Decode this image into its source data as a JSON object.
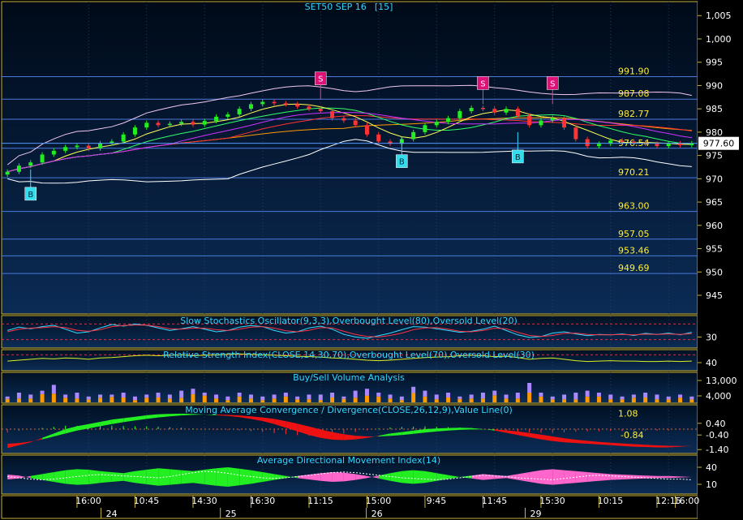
{
  "chart_data": {
    "type": "candlestick",
    "title": "SET50 SEP 16",
    "interval": "[15]",
    "current_price": "977.60",
    "y_axis": {
      "ticks": [
        "1,005",
        "1,000",
        "995",
        "990",
        "985",
        "980",
        "975",
        "970",
        "965",
        "960",
        "955",
        "950",
        "945"
      ],
      "range": [
        941,
        1008
      ]
    },
    "levels": [
      {
        "value": 991.9,
        "label": "991.90"
      },
      {
        "value": 987.08,
        "label": "987.08"
      },
      {
        "value": 982.77,
        "label": "982.77"
      },
      {
        "value": 976.54,
        "label": "976.54"
      },
      {
        "value": 970.21,
        "label": "970.21"
      },
      {
        "value": 963.0,
        "label": "963.00"
      },
      {
        "value": 957.05,
        "label": "957.05"
      },
      {
        "value": 953.46,
        "label": "953.46"
      },
      {
        "value": 949.69,
        "label": "949.69"
      }
    ],
    "signals": [
      {
        "type": "B",
        "index": 2,
        "price": 972.0
      },
      {
        "type": "S",
        "index": 27,
        "price": 987.0
      },
      {
        "type": "B",
        "index": 34,
        "price": 979.0
      },
      {
        "type": "S",
        "index": 41,
        "price": 986.0
      },
      {
        "type": "B",
        "index": 44,
        "price": 980.0
      },
      {
        "type": "S",
        "index": 47,
        "price": 986.0
      }
    ],
    "candles_close": [
      971.5,
      972.8,
      973.5,
      975.2,
      976.0,
      976.8,
      977.1,
      976.5,
      977.6,
      978.0,
      979.5,
      981.0,
      982.0,
      981.5,
      981.8,
      982.2,
      981.6,
      982.4,
      983.3,
      983.8,
      985.0,
      986.0,
      986.5,
      986.2,
      986.0,
      985.5,
      985.0,
      984.5,
      983.0,
      982.5,
      981.5,
      979.5,
      978.0,
      977.5,
      978.5,
      980.0,
      981.5,
      982.2,
      983.0,
      984.5,
      985.2,
      985.0,
      984.2,
      985.0,
      983.5,
      981.5,
      982.5,
      983.0,
      981.0,
      978.5,
      977.0,
      977.5,
      978.2,
      978.0,
      977.8,
      977.5,
      977.0,
      977.6,
      977.2,
      977.6
    ],
    "x_axis": {
      "time_labels": [
        "16:00",
        "10:45",
        "14:30",
        "16:30",
        "11:15",
        "15:00",
        "9:45",
        "11:45",
        "15:30",
        "10:15",
        "12:15",
        "16:00"
      ],
      "date_labels": [
        "24",
        "25",
        "26",
        "29"
      ]
    },
    "indicators": [
      {
        "name": "Slow Stochastics Oscillator(9,3,3),Overbought Level(80),Oversold Level(20)",
        "ticks": [
          "30"
        ],
        "k": [
          55,
          68,
          62,
          70,
          75,
          60,
          45,
          50,
          65,
          78,
          72,
          80,
          75,
          65,
          55,
          62,
          70,
          60,
          50,
          55,
          68,
          74,
          70,
          55,
          45,
          50,
          65,
          72,
          60,
          40,
          30,
          25,
          35,
          45,
          58,
          70,
          68,
          62,
          55,
          48,
          52,
          60,
          72,
          55,
          38,
          28,
          32,
          45,
          50,
          42,
          35,
          40,
          38,
          42,
          36,
          44,
          40,
          45,
          38,
          48
        ],
        "d": [
          50,
          60,
          64,
          66,
          70,
          66,
          56,
          52,
          58,
          70,
          74,
          76,
          76,
          70,
          62,
          60,
          64,
          64,
          58,
          55,
          60,
          68,
          70,
          64,
          54,
          50,
          56,
          66,
          65,
          52,
          40,
          32,
          30,
          36,
          45,
          58,
          65,
          66,
          60,
          52,
          50,
          55,
          64,
          62,
          48,
          36,
          32,
          36,
          44,
          45,
          40,
          38,
          38,
          40,
          38,
          41,
          40,
          42,
          40,
          43
        ]
      },
      {
        "name": "Relative Strength Index(CLOSE,14,30,70),Overbought Level(70),Oversold Level(30)",
        "ticks": [
          "40"
        ],
        "rsi": [
          48,
          50,
          52,
          54,
          53,
          55,
          54,
          52,
          55,
          56,
          58,
          60,
          61,
          60,
          61,
          62,
          60,
          61,
          62,
          63,
          64,
          63,
          62,
          61,
          60,
          59,
          58,
          57,
          55,
          54,
          52,
          50,
          49,
          50,
          52,
          54,
          56,
          57,
          58,
          60,
          61,
          60,
          58,
          59,
          56,
          52,
          54,
          55,
          52,
          49,
          47,
          48,
          49,
          48,
          48,
          47,
          47,
          48,
          47,
          48
        ]
      },
      {
        "name": "Buy/Sell Volume Analysis",
        "ticks": [
          "13,000",
          "4,000"
        ],
        "volume": [
          3,
          5,
          4,
          6,
          9,
          4,
          5,
          3,
          4,
          4,
          5,
          3,
          4,
          5,
          4,
          6,
          7,
          5,
          4,
          3,
          5,
          4,
          3,
          4,
          5,
          3,
          4,
          4,
          5,
          3,
          6,
          7,
          5,
          4,
          3,
          8,
          6,
          4,
          5,
          3,
          4,
          5,
          6,
          4,
          5,
          10,
          5,
          3,
          4,
          5,
          6,
          5,
          4,
          3,
          4,
          5,
          4,
          3,
          4,
          3
        ],
        "up_ratio": [
          0.6,
          0.4,
          0.5,
          0.7,
          0.5,
          0.6,
          0.4,
          0.5,
          0.6,
          0.7,
          0.5,
          0.4,
          0.6,
          0.5,
          0.5,
          0.4,
          0.6,
          0.7,
          0.5,
          0.4,
          0.6,
          0.5,
          0.4,
          0.5,
          0.6,
          0.5,
          0.4,
          0.3,
          0.5,
          0.6,
          0.4,
          0.5,
          0.6,
          0.5,
          0.4,
          0.6,
          0.5,
          0.4,
          0.5,
          0.6,
          0.5,
          0.4,
          0.6,
          0.5,
          0.4,
          0.5,
          0.6,
          0.5,
          0.4,
          0.3,
          0.5,
          0.6,
          0.4,
          0.5,
          0.6,
          0.5,
          0.4,
          0.5,
          0.6,
          0.5
        ]
      },
      {
        "name": "Moving Average Convergence / Divergence(CLOSE,26,12,9),Value Line(0)",
        "ticks": [
          "1.08",
          "0.40",
          "-0.40",
          "-1.40"
        ],
        "value_label": "-0.84",
        "macd": [
          -1.3,
          -1.1,
          -0.9,
          -0.6,
          -0.3,
          0.0,
          0.2,
          0.35,
          0.5,
          0.65,
          0.75,
          0.85,
          0.95,
          1.02,
          1.05,
          1.06,
          1.04,
          1.0,
          0.95,
          0.9,
          0.82,
          0.7,
          0.55,
          0.35,
          0.1,
          -0.15,
          -0.4,
          -0.6,
          -0.72,
          -0.75,
          -0.7,
          -0.6,
          -0.45,
          -0.3,
          -0.2,
          -0.1,
          0.0,
          0.05,
          0.08,
          0.1,
          0.08,
          0.0,
          -0.1,
          -0.25,
          -0.4,
          -0.55,
          -0.7,
          -0.82,
          -0.9,
          -0.95,
          -1.0,
          -1.05,
          -1.1,
          -1.15,
          -1.2,
          -1.22,
          -1.25,
          -1.25,
          -1.2,
          -1.15
        ],
        "signal": [
          -1.0,
          -0.95,
          -0.85,
          -0.7,
          -0.5,
          -0.3,
          -0.1,
          0.05,
          0.2,
          0.35,
          0.48,
          0.6,
          0.7,
          0.8,
          0.88,
          0.94,
          0.98,
          1.0,
          1.0,
          0.98,
          0.94,
          0.88,
          0.8,
          0.7,
          0.55,
          0.38,
          0.18,
          -0.02,
          -0.2,
          -0.35,
          -0.45,
          -0.5,
          -0.5,
          -0.46,
          -0.4,
          -0.32,
          -0.24,
          -0.16,
          -0.1,
          -0.05,
          -0.02,
          -0.01,
          -0.03,
          -0.08,
          -0.16,
          -0.26,
          -0.37,
          -0.5,
          -0.62,
          -0.72,
          -0.8,
          -0.87,
          -0.93,
          -0.98,
          -1.03,
          -1.07,
          -1.11,
          -1.14,
          -1.15,
          -1.15
        ]
      },
      {
        "name": "Average Directional Movement Index(14)",
        "ticks": [
          "40",
          "10"
        ],
        "adx": [
          22,
          20,
          18,
          17,
          18,
          20,
          22,
          24,
          25,
          24,
          23,
          22,
          21,
          20,
          22,
          25,
          28,
          30,
          29,
          27,
          24,
          22,
          20,
          19,
          20,
          22,
          24,
          26,
          28,
          29,
          28,
          26,
          24,
          22,
          20,
          19,
          18,
          17,
          18,
          20,
          22,
          24,
          23,
          22,
          20,
          19,
          18,
          17,
          19,
          21,
          23,
          24,
          23,
          22,
          21,
          20,
          19,
          18,
          18,
          17
        ],
        "di_spread": [
          -5,
          -3,
          2,
          6,
          10,
          14,
          16,
          15,
          12,
          10,
          8,
          12,
          15,
          18,
          16,
          14,
          12,
          15,
          18,
          20,
          17,
          14,
          10,
          6,
          2,
          -2,
          -5,
          -8,
          -10,
          -9,
          -6,
          -2,
          3,
          8,
          12,
          14,
          12,
          8,
          4,
          0,
          -3,
          -6,
          -4,
          -2,
          -6,
          -10,
          -14,
          -16,
          -14,
          -12,
          -10,
          -8,
          -6,
          -5,
          -4,
          -3,
          -2,
          -2,
          -1,
          0
        ]
      }
    ]
  }
}
